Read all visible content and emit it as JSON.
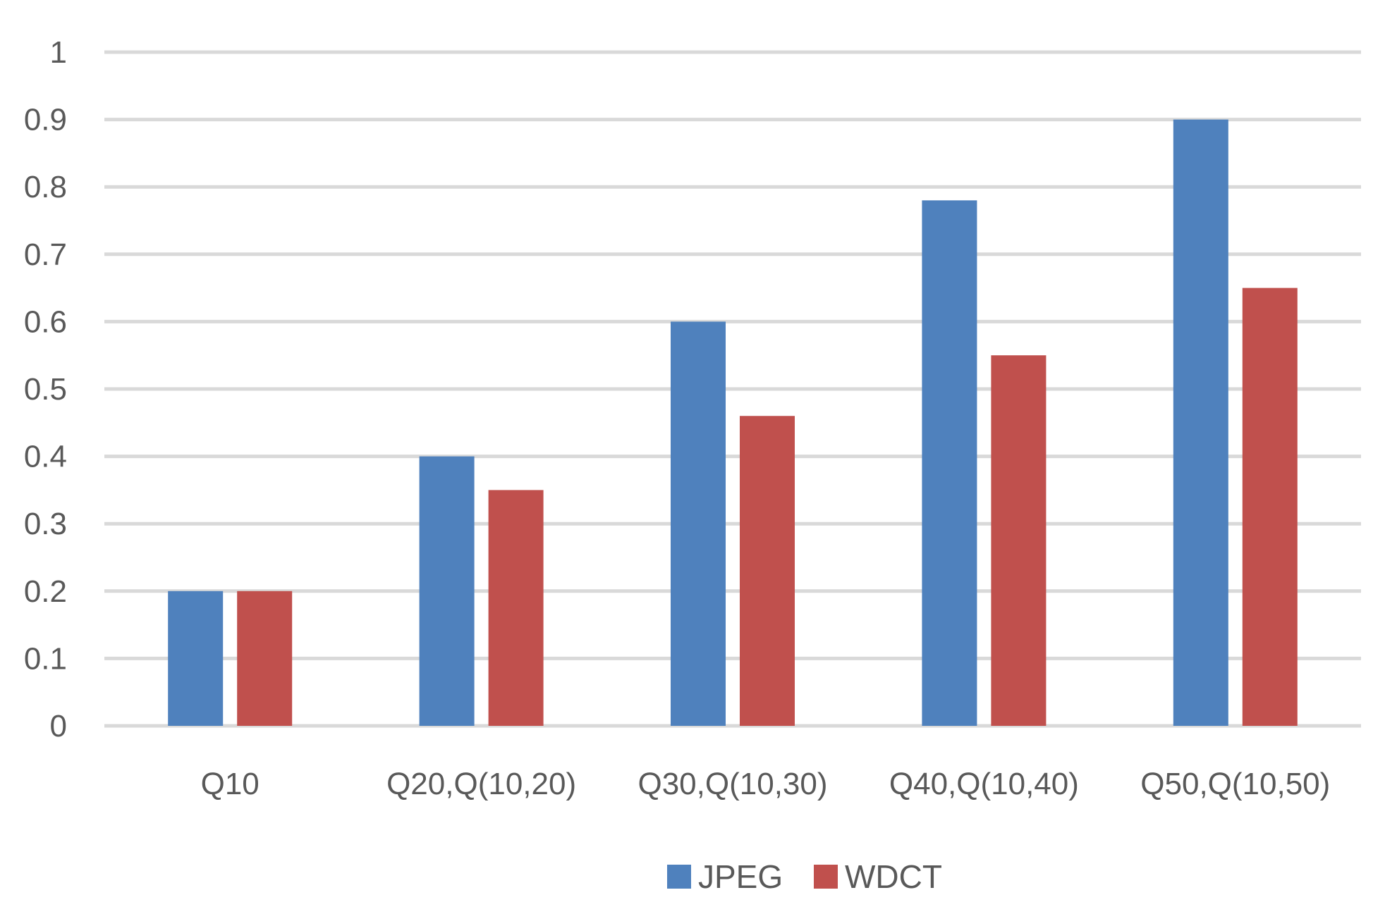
{
  "chart_data": {
    "type": "bar",
    "title": "",
    "xlabel": "",
    "ylabel": "",
    "categories": [
      "Q10",
      "Q20,Q(10,20)",
      "Q30,Q(10,30)",
      "Q40,Q(10,40)",
      "Q50,Q(10,50)"
    ],
    "series": [
      {
        "name": "JPEG",
        "color": "#4f81bd",
        "values": [
          0.2,
          0.4,
          0.6,
          0.78,
          0.9
        ]
      },
      {
        "name": "WDCT",
        "color": "#c0504d",
        "values": [
          0.2,
          0.35,
          0.46,
          0.55,
          0.65
        ]
      }
    ],
    "ylim": [
      0,
      1
    ],
    "yticks": [
      "0",
      "0.1",
      "0.2",
      "0.3",
      "0.4",
      "0.5",
      "0.6",
      "0.7",
      "0.8",
      "0.9",
      "1"
    ],
    "grid": true,
    "legend_position": "bottom-center",
    "gridline_color": "#d9d9d9"
  }
}
